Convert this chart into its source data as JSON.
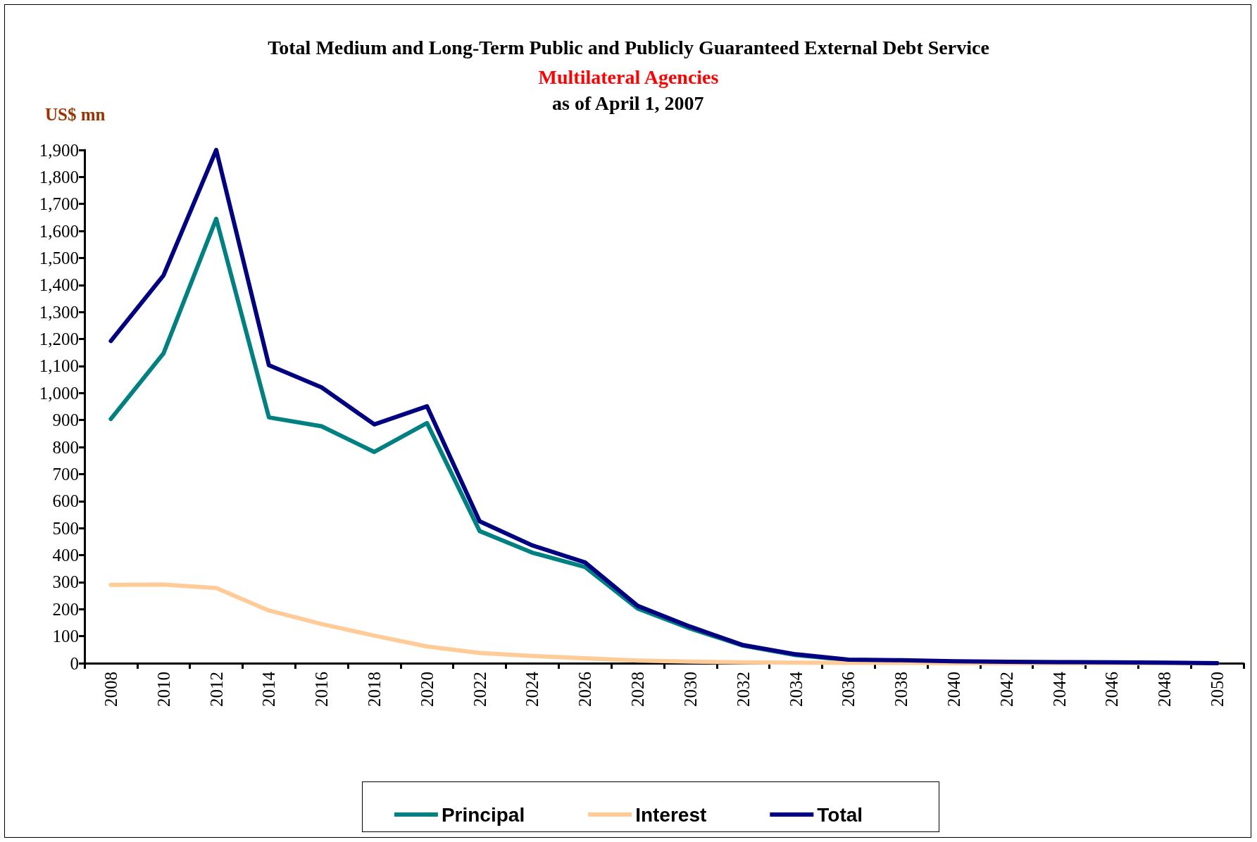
{
  "chart_data": {
    "type": "line",
    "title": "Total Medium and Long-Term Public and Publicly Guaranteed External Debt Service",
    "subtitle": "Multilateral Agencies",
    "annotations": [
      "as of April 1, 2007"
    ],
    "ylabel": "US$ mn",
    "categories": [
      "2008",
      "2010",
      "2012",
      "2014",
      "2016",
      "2018",
      "2020",
      "2022",
      "2024",
      "2026",
      "2028",
      "2030",
      "2032",
      "2034",
      "2036",
      "2038",
      "2040",
      "2042",
      "2044",
      "2046",
      "2048",
      "2050"
    ],
    "series": [
      {
        "name": "Principal",
        "color": "#008080",
        "values": [
          904,
          1147,
          1645,
          910,
          877,
          782,
          889,
          489,
          409,
          356,
          202,
          128,
          65,
          30,
          12,
          9,
          null,
          null,
          null,
          null,
          null,
          null
        ]
      },
      {
        "name": "Interest",
        "color": "#ffcc99",
        "values": [
          290,
          291,
          278,
          195,
          145,
          102,
          62,
          38,
          27,
          18,
          10,
          6,
          3,
          2,
          1,
          1,
          0,
          0,
          0,
          0,
          0,
          0
        ]
      },
      {
        "name": "Total",
        "color": "#000080",
        "values": [
          1193,
          1436,
          1900,
          1103,
          1021,
          884,
          951,
          525,
          436,
          373,
          212,
          135,
          67,
          33,
          13,
          11,
          7,
          5,
          4,
          3,
          2,
          0
        ]
      }
    ],
    "ylim": [
      0,
      1900
    ],
    "yticks": [
      0,
      100,
      200,
      300,
      400,
      500,
      600,
      700,
      800,
      900,
      {
        "value": 1000,
        "label": "1,000"
      },
      {
        "value": 1100,
        "label": "1,100"
      },
      {
        "value": 1200,
        "label": "1,200"
      },
      {
        "value": 1300,
        "label": "1,300"
      },
      {
        "value": 1400,
        "label": "1,400"
      },
      {
        "value": 1500,
        "label": "1,500"
      },
      {
        "value": 1600,
        "label": "1,600"
      },
      {
        "value": 1700,
        "label": "1,700"
      },
      {
        "value": 1800,
        "label": "1,800"
      },
      {
        "value": 1900,
        "label": "1,900"
      }
    ],
    "grid": false,
    "legend": "bottom",
    "marker": "none",
    "line_style": "solid"
  }
}
